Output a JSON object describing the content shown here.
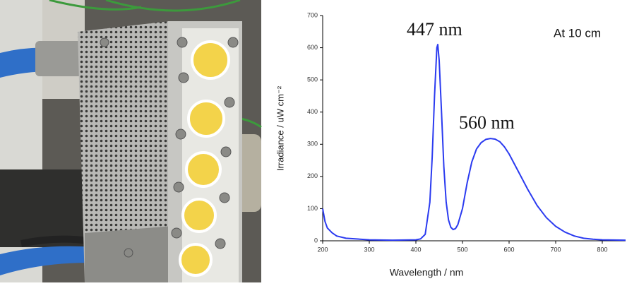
{
  "chart_data": {
    "type": "line",
    "x_label": "Wavelength / nm",
    "y_label": "Irradiance / uW cm⁻²",
    "annotations": [
      "447 nm",
      "560 nm",
      "At 10 cm"
    ],
    "xlim": [
      200,
      850
    ],
    "xticks": [
      200,
      300,
      400,
      500,
      600,
      700,
      800
    ],
    "ylim": [
      0,
      700
    ],
    "yticks": [
      0,
      100,
      200,
      300,
      400,
      500,
      600,
      700
    ],
    "series": [
      {
        "color": "#2b3bf0",
        "x": [
          200,
          205,
          210,
          220,
          230,
          250,
          300,
          350,
          400,
          410,
          420,
          430,
          435,
          440,
          445,
          447,
          450,
          455,
          460,
          465,
          470,
          475,
          480,
          485,
          490,
          500,
          510,
          520,
          530,
          540,
          550,
          560,
          570,
          580,
          590,
          600,
          620,
          640,
          660,
          680,
          700,
          720,
          740,
          760,
          780,
          800,
          850
        ],
        "values": [
          100,
          60,
          40,
          25,
          15,
          8,
          3,
          2,
          3,
          6,
          20,
          120,
          260,
          450,
          600,
          610,
          560,
          400,
          230,
          120,
          65,
          42,
          35,
          38,
          50,
          100,
          180,
          245,
          285,
          305,
          315,
          318,
          316,
          308,
          292,
          270,
          215,
          160,
          110,
          72,
          45,
          27,
          15,
          8,
          5,
          3,
          2
        ]
      }
    ]
  }
}
